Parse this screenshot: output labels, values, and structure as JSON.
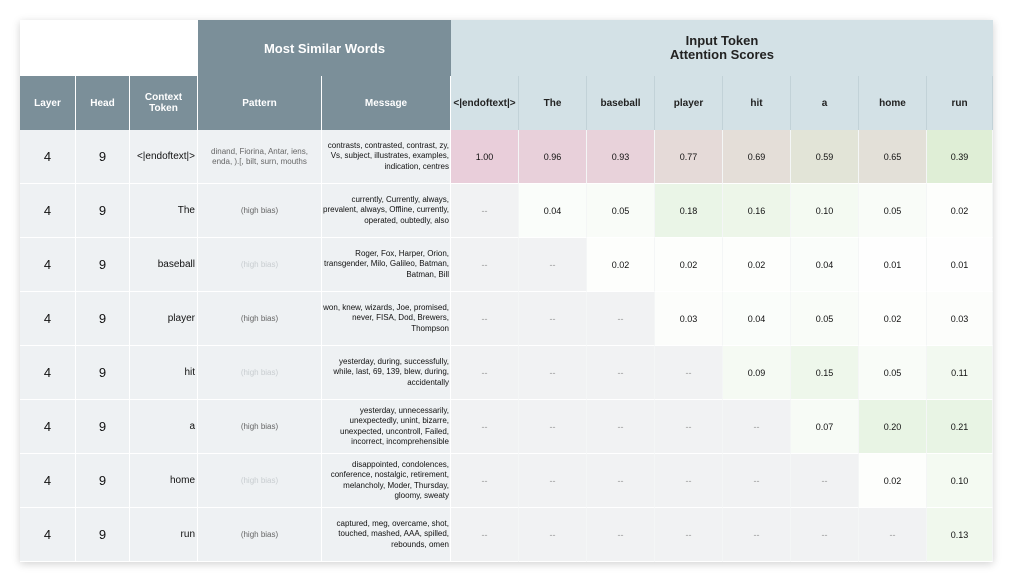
{
  "header": {
    "most_similar": "Most Similar Words",
    "attention_line1": "Input Token",
    "attention_line2": "Attention Scores"
  },
  "columns": {
    "layer": "Layer",
    "head": "Head",
    "context": "Context Token",
    "pattern": "Pattern",
    "message": "Message"
  },
  "tokens": [
    "<|endoftext|>",
    "The",
    "baseball",
    "player",
    "hit",
    "a",
    "home",
    "run"
  ],
  "rows": [
    {
      "layer": "4",
      "head": "9",
      "context": "<|endoftext|>",
      "pattern": "dinand, Fiorina, Antar, iens, enda, ).[, bilt, surn, mouths",
      "pattern_faint": false,
      "message": "contrasts, contrasted, contrast, zy, Vs, subject, illustrates, examples, indication, centres",
      "scores": [
        "1.00",
        "0.96",
        "0.93",
        "0.77",
        "0.69",
        "0.59",
        "0.65",
        "0.39"
      ]
    },
    {
      "layer": "4",
      "head": "9",
      "context": "The",
      "pattern": "(high bias)",
      "pattern_faint": false,
      "message": "currently, Currently, always, prevalent, always, Offline, currently, operated, oubtedly, also",
      "scores": [
        "--",
        "0.04",
        "0.05",
        "0.18",
        "0.16",
        "0.10",
        "0.05",
        "0.02"
      ]
    },
    {
      "layer": "4",
      "head": "9",
      "context": "baseball",
      "pattern": "(high bias)",
      "pattern_faint": true,
      "message": "Roger, Fox, Harper, Orion, transgender, Milo, Galileo, Batman, Batman, Bill",
      "scores": [
        "--",
        "--",
        "0.02",
        "0.02",
        "0.02",
        "0.04",
        "0.01",
        "0.01"
      ]
    },
    {
      "layer": "4",
      "head": "9",
      "context": "player",
      "pattern": "(high bias)",
      "pattern_faint": false,
      "message": "won, knew, wizards, Joe, promised, never, FISA, Dod, Brewers, Thompson",
      "scores": [
        "--",
        "--",
        "--",
        "0.03",
        "0.04",
        "0.05",
        "0.02",
        "0.03"
      ]
    },
    {
      "layer": "4",
      "head": "9",
      "context": "hit",
      "pattern": "(high bias)",
      "pattern_faint": true,
      "message": "yesterday, during, successfully, while, last, 69, 139, blew, during, accidentally",
      "scores": [
        "--",
        "--",
        "--",
        "--",
        "0.09",
        "0.15",
        "0.05",
        "0.11"
      ]
    },
    {
      "layer": "4",
      "head": "9",
      "context": "a",
      "pattern": "(high bias)",
      "pattern_faint": false,
      "message": "yesterday, unnecessarily, unexpectedly, unint, bizarre, unexpected, uncontroll, Failed, incorrect, incomprehensible",
      "scores": [
        "--",
        "--",
        "--",
        "--",
        "--",
        "0.07",
        "0.20",
        "0.21"
      ]
    },
    {
      "layer": "4",
      "head": "9",
      "context": "home",
      "pattern": "(high bias)",
      "pattern_faint": true,
      "message": "disappointed, condolences, conference, nostalgic, retirement, melancholy, Moder, Thursday, gloomy, sweaty",
      "scores": [
        "--",
        "--",
        "--",
        "--",
        "--",
        "--",
        "0.02",
        "0.10"
      ]
    },
    {
      "layer": "4",
      "head": "9",
      "context": "run",
      "pattern": "(high bias)",
      "pattern_faint": false,
      "message": "captured, meg, overcame, shot, touched, mashed, AAA, spilled, rebounds, omen",
      "scores": [
        "--",
        "--",
        "--",
        "--",
        "--",
        "--",
        "--",
        "0.13"
      ]
    }
  ],
  "colors": {
    "dark_header": "#7b8f99",
    "light_header": "#d3e1e6",
    "row_gray": "#eef1f3"
  }
}
